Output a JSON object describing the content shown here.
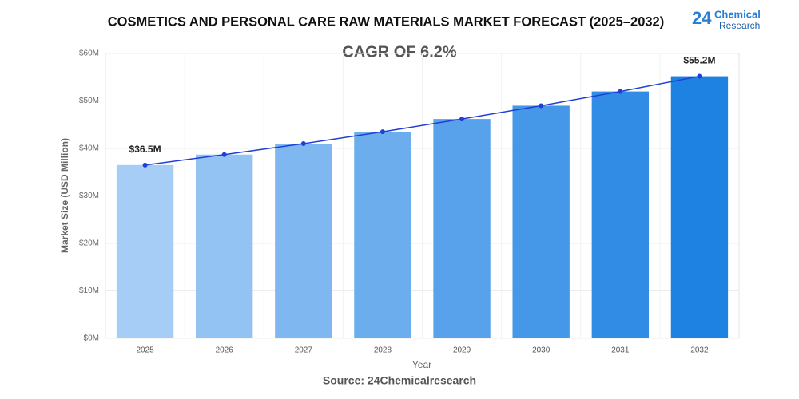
{
  "chart_data": {
    "type": "bar",
    "title": "COSMETICS AND PERSONAL CARE RAW MATERIALS MARKET FORECAST (2025–2032)",
    "annotation": "CAGR OF 6.2%",
    "y_label": "Market Size (USD Million)",
    "x_label": "Year",
    "source": "Source: 24Chemicalresearch",
    "categories": [
      "2025",
      "2026",
      "2027",
      "2028",
      "2029",
      "2030",
      "2031",
      "2032"
    ],
    "values": [
      36.5,
      38.7,
      41.0,
      43.5,
      46.2,
      49.0,
      52.0,
      55.2
    ],
    "value_labels": [
      "$36.5M",
      null,
      null,
      null,
      null,
      null,
      null,
      "$55.2M"
    ],
    "colors": [
      "#a6cdf5",
      "#93c3f3",
      "#7fb8f0",
      "#6cadee",
      "#58a2eb",
      "#4597e8",
      "#318ce6",
      "#1e82e3"
    ],
    "line_overlay": true,
    "line_color": "#1f3fd6",
    "ylim": [
      0,
      60
    ],
    "yticks": [
      {
        "value": 0,
        "label": "$0M"
      },
      {
        "value": 10,
        "label": "$10M"
      },
      {
        "value": 20,
        "label": "$20M"
      },
      {
        "value": 30,
        "label": "$30M"
      },
      {
        "value": 40,
        "label": "$40M"
      },
      {
        "value": 50,
        "label": "$50M"
      },
      {
        "value": 60,
        "label": "$60M"
      }
    ],
    "grid": true
  },
  "logo": {
    "number": "24",
    "line1": "Chemical",
    "line2": "Research"
  }
}
